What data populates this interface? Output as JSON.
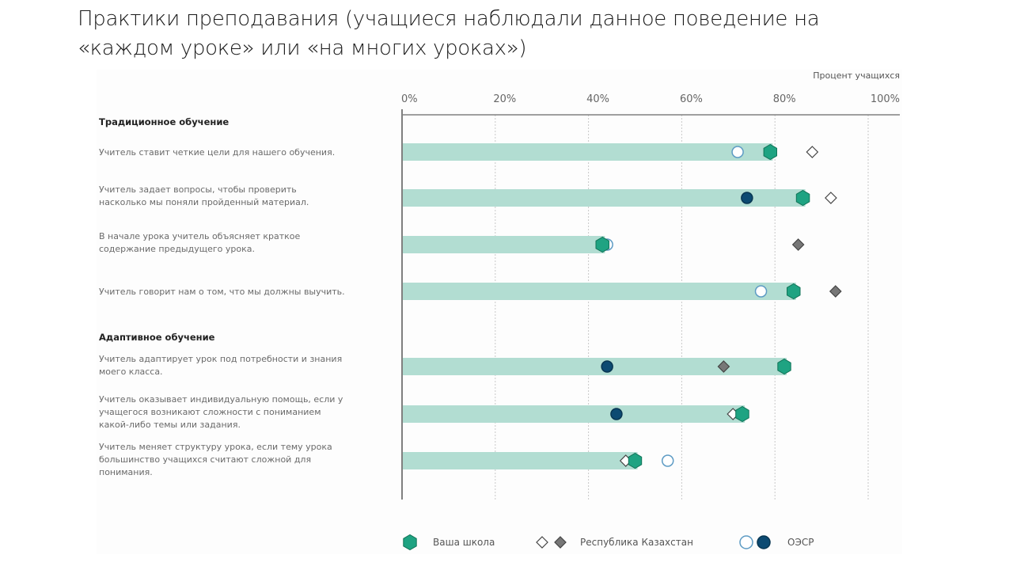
{
  "slide": {
    "title": "Практики преподавания (учащиеся наблюдали данное поведение на «каждом уроке» или «на многих уроках»)"
  },
  "chart_data": {
    "type": "bar",
    "subtype": "horizontal bar with dot markers",
    "title": "Практики преподавания (учащиеся наблюдали данное поведение на «каждом уроке» или «на многих уроках»)",
    "xlabel": "Процент учащихся",
    "ylabel": "",
    "xlim": [
      0,
      100
    ],
    "x_ticks": [
      0,
      20,
      40,
      60,
      80,
      100
    ],
    "x_tick_labels": [
      "0%",
      "20%",
      "40%",
      "60%",
      "80%",
      "100%"
    ],
    "grid": "vertical dotted",
    "legend_position": "bottom",
    "groups": [
      {
        "label": "Традиционное обучение",
        "items": [
          {
            "label_lines": [
              "Учитель ставит четкие цели для нашего обучения."
            ],
            "school": 79,
            "kazakhstan": 88,
            "kazakhstan_significant": false,
            "oecd": 72,
            "oecd_significant": false
          },
          {
            "label_lines": [
              "Учитель задает вопросы, чтобы проверить",
              "насколько мы поняли пройденный материал."
            ],
            "school": 86,
            "kazakhstan": 92,
            "kazakhstan_significant": false,
            "oecd": 74,
            "oecd_significant": true
          },
          {
            "label_lines": [
              "В начале урока учитель объясняет краткое",
              "содержание предыдущего урока."
            ],
            "school": 43,
            "kazakhstan": 85,
            "kazakhstan_significant": true,
            "oecd": 44,
            "oecd_significant": false
          },
          {
            "label_lines": [
              "Учитель говорит нам о том, что мы должны выучить."
            ],
            "school": 84,
            "kazakhstan": 93,
            "kazakhstan_significant": true,
            "oecd": 77,
            "oecd_significant": false
          }
        ]
      },
      {
        "label": "Адаптивное обучение",
        "items": [
          {
            "label_lines": [
              "Учитель адаптирует урок под потребности и знания",
              "моего класса."
            ],
            "school": 82,
            "kazakhstan": 69,
            "kazakhstan_significant": true,
            "oecd": 44,
            "oecd_significant": true
          },
          {
            "label_lines": [
              "Учитель оказывает индивидуальную помощь, если у",
              "учащегося возникают сложности с пониманием",
              "какой-либо темы или задания."
            ],
            "school": 73,
            "kazakhstan": 71,
            "kazakhstan_significant": false,
            "oecd": 46,
            "oecd_significant": true
          },
          {
            "label_lines": [
              "Учитель меняет структуру урока, если тему урока",
              "большинство учащихся считают сложной для",
              "понимания."
            ],
            "school": 50,
            "kazakhstan": 48,
            "kazakhstan_significant": false,
            "oecd": 57,
            "oecd_significant": false
          }
        ]
      }
    ],
    "legend": [
      {
        "name": "Ваша школа",
        "marker": "hexagon"
      },
      {
        "name": "Республика Казахстан",
        "marker": "diamond (open / filled)"
      },
      {
        "name": "ОЭСР",
        "marker": "circle (open / filled)"
      }
    ],
    "colors": {
      "bar": "#b2ddd2",
      "school": "#1fa382",
      "school_stroke": "#127458",
      "kz_filled": "#777777",
      "kz_stroke": "#444444",
      "oecd_filled": "#0c4a72",
      "oecd_open_stroke": "#5d9bc4",
      "axis": "#808080",
      "grid": "#c8c8c8"
    }
  }
}
